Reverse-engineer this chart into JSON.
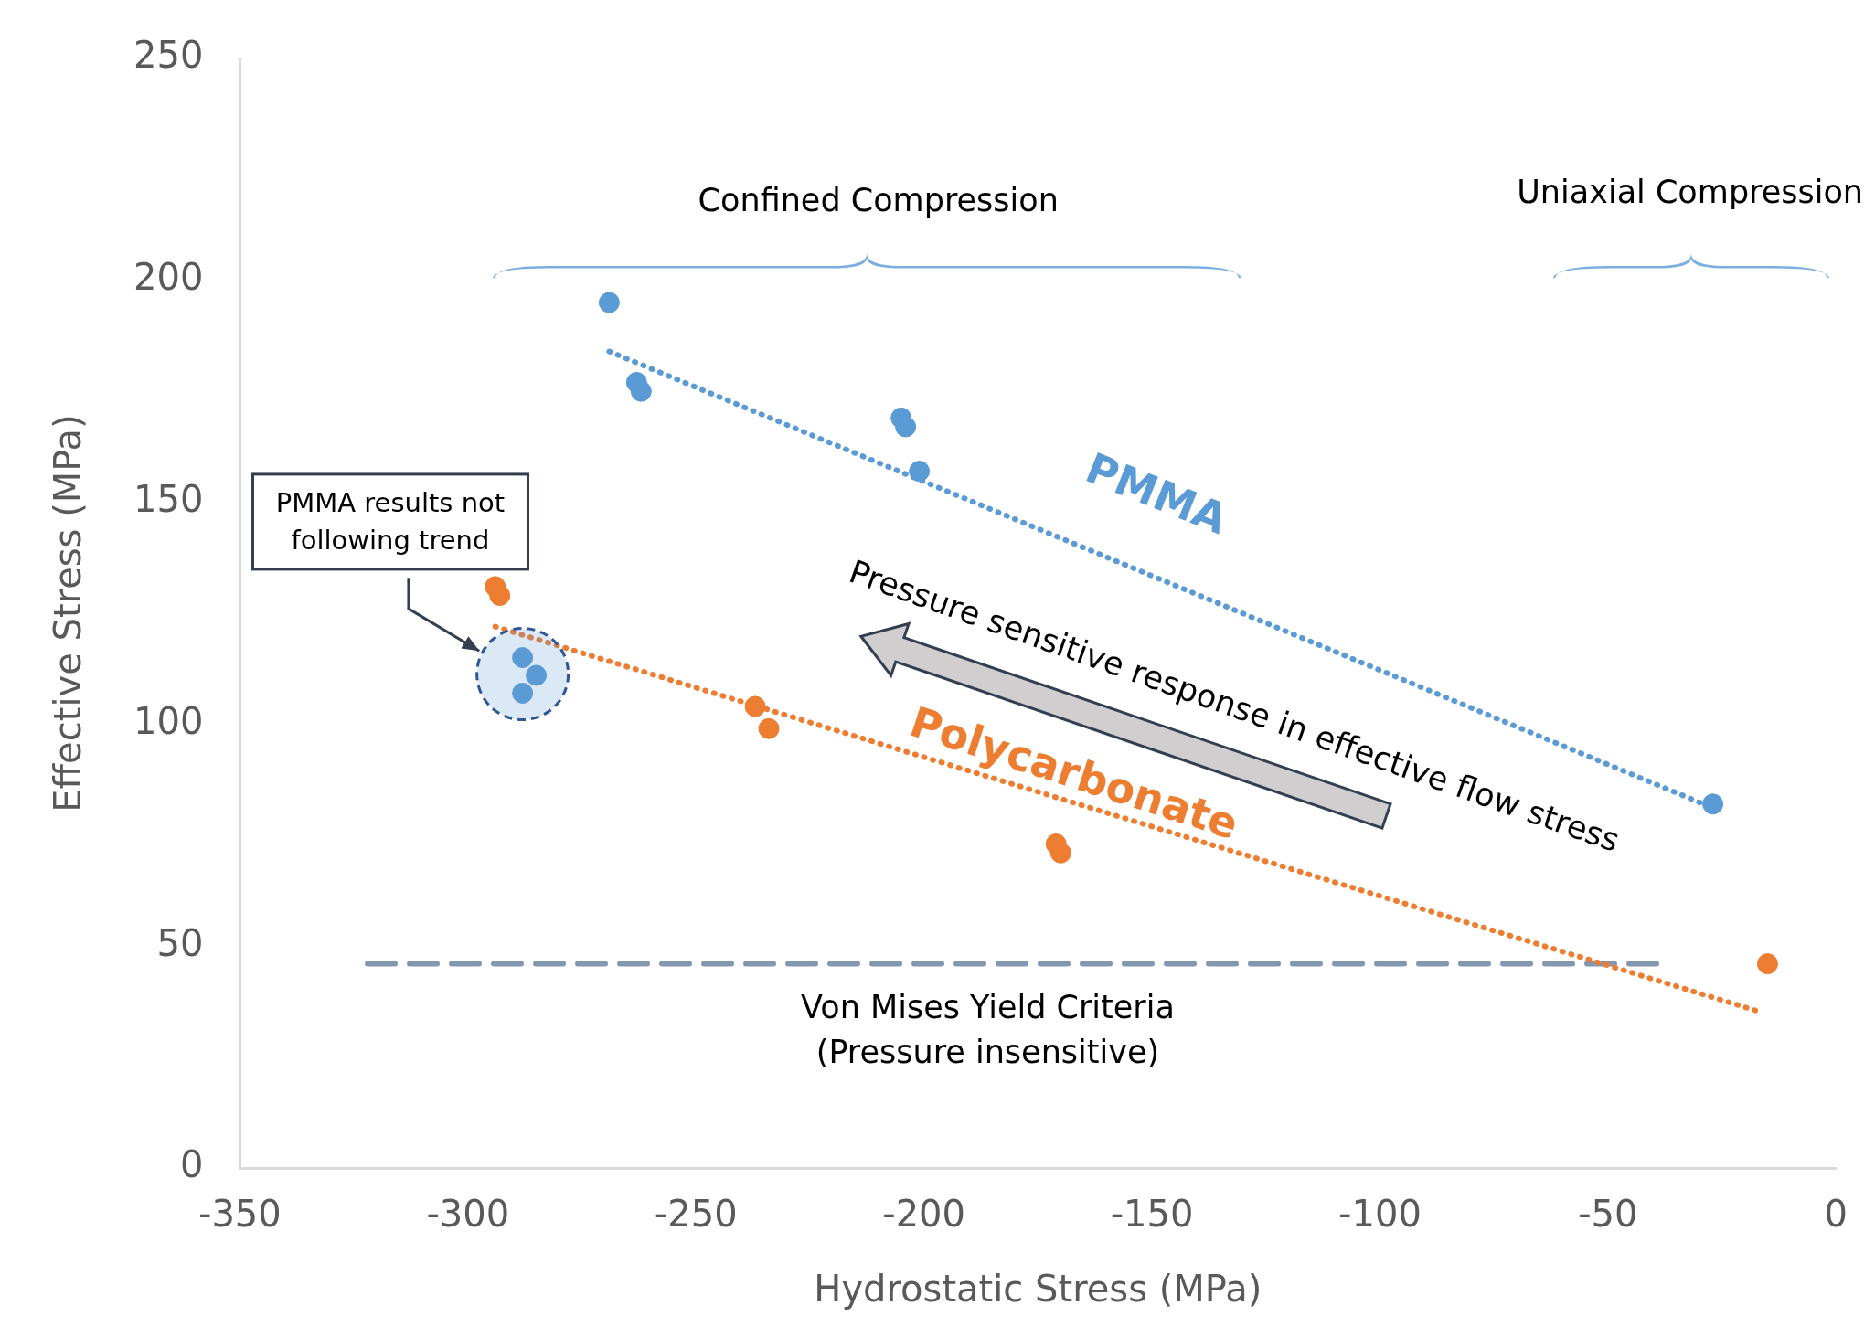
{
  "chart_data": {
    "type": "scatter",
    "xlabel": "Hydrostatic Stress (MPa)",
    "ylabel": "Effective Stress (MPa)",
    "xlim": [
      -350,
      0
    ],
    "xticks": [
      -350,
      -300,
      -250,
      -200,
      -150,
      -100,
      -50,
      0
    ],
    "ylim": [
      0,
      250
    ],
    "yticks": [
      0,
      50,
      100,
      150,
      200,
      250
    ],
    "legend": false,
    "marker": "circle",
    "series": [
      {
        "name": "PMMA",
        "color": "#5b9bd5",
        "x": [
          -269,
          -263,
          -262,
          -205,
          -204,
          -201,
          -27,
          -288,
          -285,
          -288
        ],
        "values": [
          195,
          177,
          175,
          169,
          167,
          157,
          82,
          115,
          111,
          107
        ]
      },
      {
        "name": "Polycarbonate",
        "color": "#ed7d31",
        "x": [
          -294,
          -293,
          -237,
          -234,
          -171,
          -170,
          -15
        ],
        "values": [
          131,
          129,
          104,
          99,
          73,
          71,
          46
        ]
      },
      {
        "type": "line",
        "color": "#5b9bd5",
        "line_style": "dotted",
        "marker": "none",
        "x": [
          -269,
          -29
        ],
        "values": [
          184,
          82
        ]
      },
      {
        "type": "line",
        "color": "#ed7d31",
        "line_style": "dotted",
        "marker": "none",
        "x": [
          -294,
          -16
        ],
        "values": [
          122,
          35
        ]
      },
      {
        "type": "line",
        "color": "#8497b0",
        "line_style": "dashed",
        "marker": "none",
        "x": [
          -322,
          -39
        ],
        "values": [
          46,
          46
        ]
      }
    ],
    "annotations": [
      "Confined Compression",
      "Uniaxial Compression",
      "PMMA results not following trend",
      "Pressure sensitive response in effective flow stress",
      "Von Mises Yield Criteria\n(Pressure insensitive)"
    ]
  }
}
